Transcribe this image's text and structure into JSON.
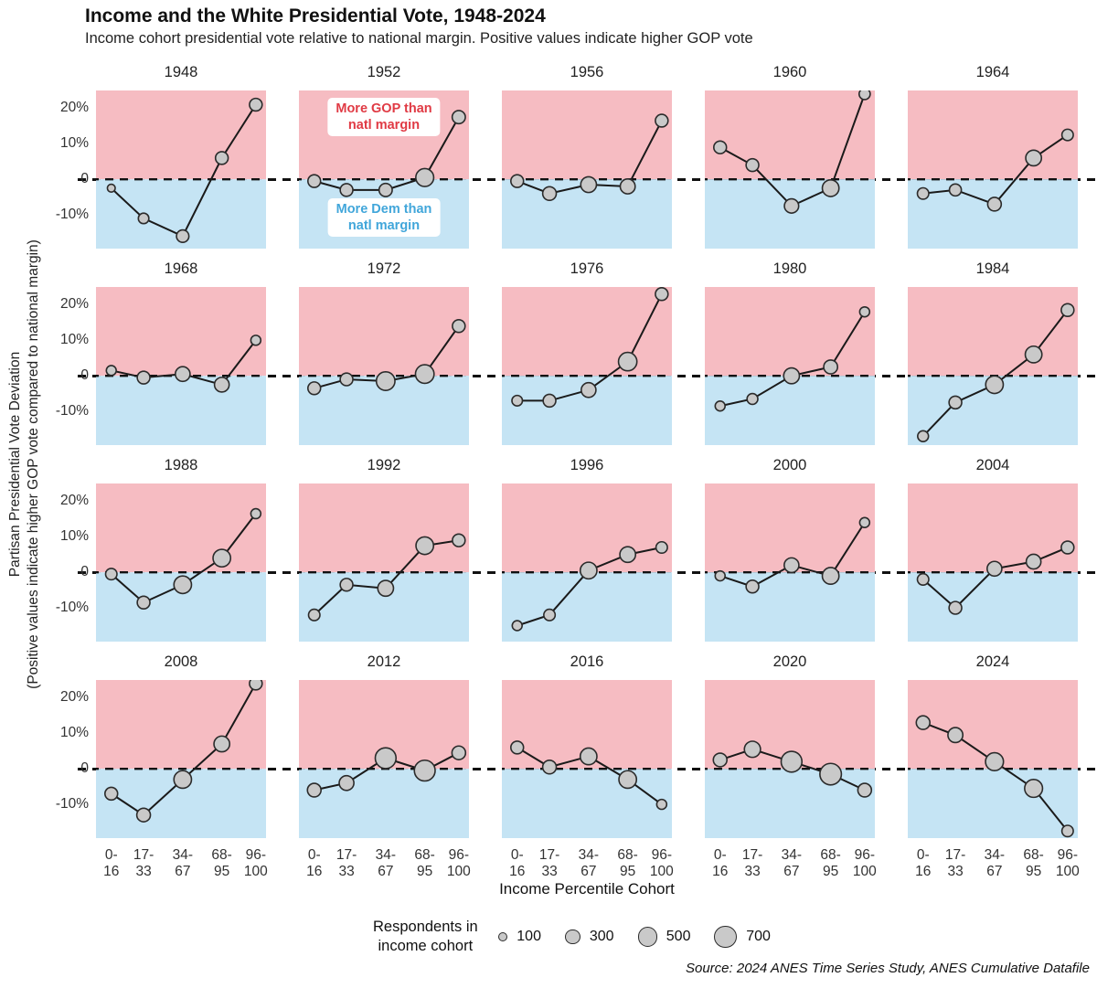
{
  "header": {
    "title": "Income and the White Presidential Vote, 1948-2024",
    "subtitle": "Income cohort presidential vote relative to national margin. Positive values indicate higher GOP vote"
  },
  "y_axis": {
    "label_line1": "Partisan Presidential Vote Deviation",
    "label_line2": "(Positive values indicate higher GOP vote compared to national margin)",
    "tick_labels": [
      "20%",
      "10%",
      "0",
      "-10%"
    ],
    "tick_values": [
      20,
      10,
      0,
      -10
    ]
  },
  "x_axis": {
    "label": "Income Percentile Cohort",
    "tick_top": [
      "0-",
      "17-",
      "34-",
      "68-",
      "96-"
    ],
    "tick_bottom": [
      "16",
      "33",
      "67",
      "95",
      "100"
    ]
  },
  "annotations": {
    "gop_line1": "More GOP than",
    "gop_line2": "natl margin",
    "dem_line1": "More Dem than",
    "dem_line2": "natl margin",
    "panel_year": "1952"
  },
  "legend": {
    "title_line1": "Respondents in",
    "title_line2": "income cohort",
    "sizes": [
      100,
      300,
      500,
      700
    ]
  },
  "source": "Source: 2024 ANES Time Series Study, ANES Cumulative Datafile",
  "colors": {
    "gop_bg": "#f6bcc2",
    "dem_bg": "#c5e4f4",
    "point_fill": "#c9c9c9",
    "point_stroke": "#2b2b2b",
    "line": "#1a1a1a",
    "zero_line": "#111111",
    "gop_text": "#e03a44",
    "dem_text": "#41a6da"
  },
  "chart_data": {
    "type": "line",
    "title": "Income and the White Presidential Vote, 1948-2024",
    "xlabel": "Income Percentile Cohort",
    "ylabel": "Partisan Presidential Vote Deviation (Positive values indicate higher GOP vote compared to national margin)",
    "categories": [
      "0-16",
      "17-33",
      "34-67",
      "68-95",
      "96-100"
    ],
    "ylim": [
      -19.5,
      25
    ],
    "grid": false,
    "legend_position": "bottom",
    "point_size_meaning": "respondents in income cohort",
    "panels": [
      {
        "year": "1948",
        "values": [
          -2.5,
          -11,
          -16,
          6,
          21
        ],
        "respondents": [
          100,
          180,
          250,
          260,
          260
        ]
      },
      {
        "year": "1952",
        "values": [
          -0.5,
          -3,
          -3,
          0.5,
          17.5
        ],
        "respondents": [
          260,
          260,
          280,
          520,
          280
        ]
      },
      {
        "year": "1956",
        "values": [
          -0.5,
          -4,
          -1.5,
          -2,
          16.5
        ],
        "respondents": [
          260,
          300,
          400,
          360,
          260
        ]
      },
      {
        "year": "1960",
        "values": [
          9,
          4,
          -7.5,
          -2.5,
          24
        ],
        "respondents": [
          260,
          260,
          330,
          450,
          200
        ]
      },
      {
        "year": "1964",
        "values": [
          -4,
          -3,
          -7,
          6,
          12.5
        ],
        "respondents": [
          210,
          230,
          300,
          400,
          210
        ]
      },
      {
        "year": "1968",
        "values": [
          1.5,
          -0.5,
          0.5,
          -2.5,
          10
        ],
        "respondents": [
          160,
          260,
          350,
          350,
          160
        ]
      },
      {
        "year": "1972",
        "values": [
          -3.5,
          -1,
          -1.5,
          0.5,
          14
        ],
        "respondents": [
          260,
          260,
          560,
          560,
          260
        ]
      },
      {
        "year": "1976",
        "values": [
          -7,
          -7,
          -4,
          4,
          23
        ],
        "respondents": [
          180,
          260,
          350,
          550,
          260
        ]
      },
      {
        "year": "1980",
        "values": [
          -8.5,
          -6.5,
          0,
          2.5,
          18
        ],
        "respondents": [
          160,
          190,
          400,
          310,
          160
        ]
      },
      {
        "year": "1984",
        "values": [
          -17,
          -7.5,
          -2.5,
          6,
          18.5
        ],
        "respondents": [
          190,
          260,
          500,
          450,
          260
        ]
      },
      {
        "year": "1988",
        "values": [
          -0.5,
          -8.5,
          -3.5,
          4,
          16.5
        ],
        "respondents": [
          210,
          260,
          500,
          500,
          160
        ]
      },
      {
        "year": "1992",
        "values": [
          -12,
          -3.5,
          -4.5,
          7.5,
          9
        ],
        "respondents": [
          210,
          260,
          400,
          500,
          260
        ]
      },
      {
        "year": "1996",
        "values": [
          -15,
          -12,
          0.5,
          5,
          7
        ],
        "respondents": [
          160,
          210,
          450,
          400,
          210
        ]
      },
      {
        "year": "2000",
        "values": [
          -1,
          -4,
          2,
          -1,
          14
        ],
        "respondents": [
          160,
          260,
          350,
          450,
          160
        ]
      },
      {
        "year": "2004",
        "values": [
          -2,
          -10,
          1,
          3,
          7
        ],
        "respondents": [
          210,
          260,
          350,
          350,
          260
        ]
      },
      {
        "year": "2008",
        "values": [
          -7,
          -13,
          -3,
          7,
          24
        ],
        "respondents": [
          260,
          300,
          500,
          400,
          260
        ]
      },
      {
        "year": "2012",
        "values": [
          -6,
          -4,
          3,
          -0.5,
          4.5
        ],
        "respondents": [
          300,
          350,
          700,
          700,
          300
        ]
      },
      {
        "year": "2016",
        "values": [
          6,
          0.5,
          3.5,
          -3,
          -10
        ],
        "respondents": [
          260,
          300,
          450,
          500,
          160
        ]
      },
      {
        "year": "2020",
        "values": [
          2.5,
          5.5,
          2,
          -1.5,
          -6
        ],
        "respondents": [
          300,
          420,
          700,
          750,
          300
        ]
      },
      {
        "year": "2024",
        "values": [
          13,
          9.5,
          2,
          -5.5,
          -17.5
        ],
        "respondents": [
          300,
          360,
          520,
          520,
          210
        ]
      }
    ]
  }
}
